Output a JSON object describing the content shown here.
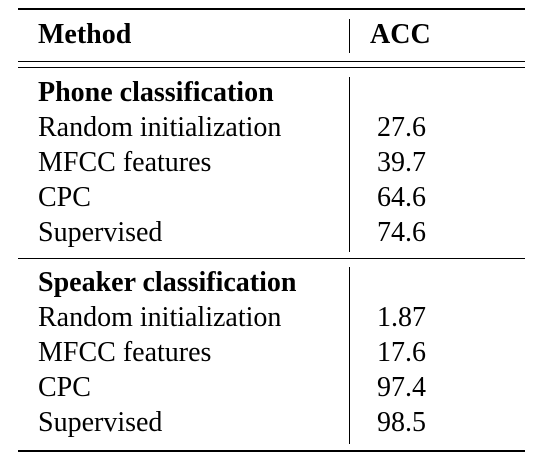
{
  "header": {
    "method": "Method",
    "acc": "ACC"
  },
  "sections": [
    {
      "title": "Phone classification",
      "rows": [
        {
          "method": "Random initialization",
          "acc": "27.6"
        },
        {
          "method": "MFCC features",
          "acc": "39.7"
        },
        {
          "method": "CPC",
          "acc": "64.6"
        },
        {
          "method": "Supervised",
          "acc": "74.6"
        }
      ]
    },
    {
      "title": "Speaker classification",
      "rows": [
        {
          "method": "Random initialization",
          "acc": "1.87"
        },
        {
          "method": "MFCC features",
          "acc": "17.6"
        },
        {
          "method": "CPC",
          "acc": "97.4"
        },
        {
          "method": "Supervised",
          "acc": "98.5"
        }
      ]
    }
  ]
}
